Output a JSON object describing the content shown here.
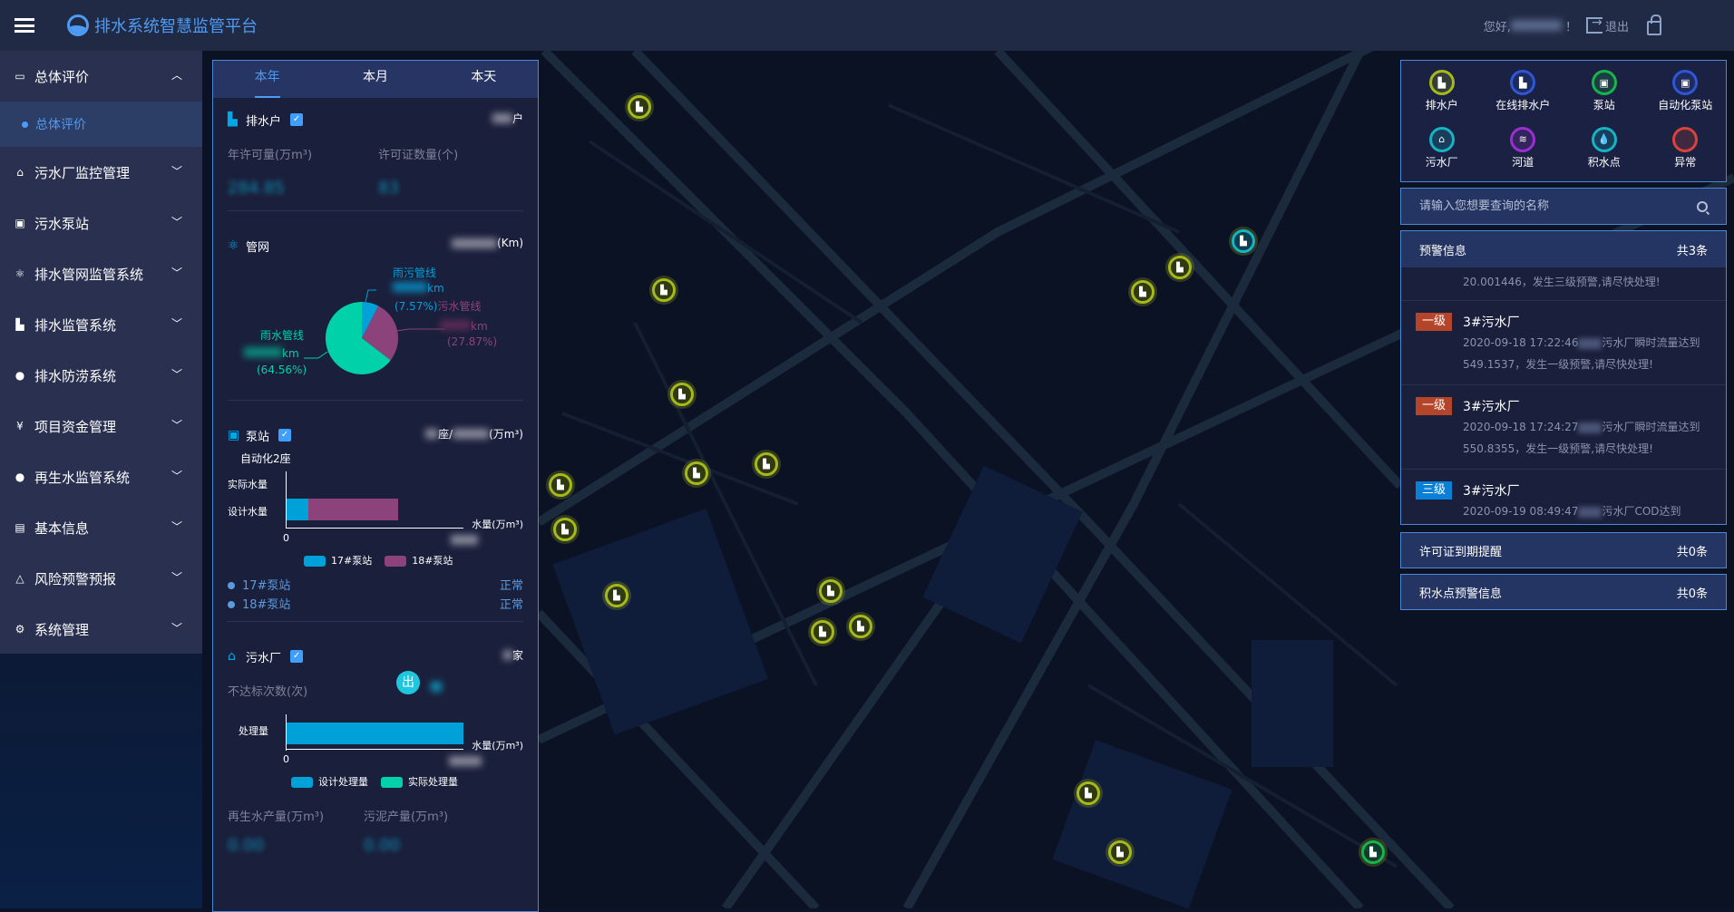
{
  "header": {
    "title": "排水系统智慧监管平台",
    "greeting": "您好,",
    "greeting_end": "！",
    "logout": "退出"
  },
  "sidebar": {
    "items": [
      {
        "label": "总体评价",
        "icon": "monitor-icon",
        "expanded": true,
        "sub": [
          {
            "label": "总体评价",
            "active": true
          }
        ]
      },
      {
        "label": "污水厂监控管理",
        "icon": "home-icon"
      },
      {
        "label": "污水泵站",
        "icon": "pump-icon"
      },
      {
        "label": "排水管网监管系统",
        "icon": "network-icon"
      },
      {
        "label": "排水监管系统",
        "icon": "building-icon"
      },
      {
        "label": "排水防涝系统",
        "icon": "drop-icon"
      },
      {
        "label": "项目资金管理",
        "icon": "money-icon"
      },
      {
        "label": "再生水监管系统",
        "icon": "water-icon"
      },
      {
        "label": "基本信息",
        "icon": "info-icon"
      },
      {
        "label": "风险预警预报",
        "icon": "bell-icon"
      },
      {
        "label": "系统管理",
        "icon": "gear-icon"
      }
    ]
  },
  "left_panel": {
    "tabs": [
      {
        "label": "本年",
        "active": true
      },
      {
        "label": "本月"
      },
      {
        "label": "本天"
      }
    ],
    "drain_households": {
      "title": "排水户",
      "unit": "户",
      "annual_permit_label": "年许可量(万m³)",
      "permit_count_label": "许可证数量(个)",
      "annual_permit_value": "284.85",
      "permit_count_value": "83"
    },
    "pipe_network": {
      "title": "管网",
      "unit": "(Km)",
      "km": "km",
      "pie": [
        {
          "name": "雨污管线",
          "percent": 7.57,
          "label": "(7.57%)",
          "color": "#00a0d8"
        },
        {
          "name": "污水管线",
          "percent": 27.87,
          "label": "(27.87%)",
          "color": "#8c437c"
        },
        {
          "name": "雨水管线",
          "percent": 64.56,
          "label": "(64.56%)",
          "color": "#00d1a8"
        }
      ]
    },
    "pump_station": {
      "title": "泵站",
      "right_mid": "座/",
      "unit": "(万m³)",
      "automation": "自动化2座",
      "y_labels": [
        "实际水量",
        "设计水量"
      ],
      "x_zero": "0",
      "x_label": "水量(万m³)",
      "legend": [
        {
          "name": "17#泵站",
          "color": "#00a0d8"
        },
        {
          "name": "18#泵站",
          "color": "#8c437c"
        }
      ],
      "stations": [
        {
          "name": "17#泵站",
          "status": "正常"
        },
        {
          "name": "18#泵站",
          "status": "正常"
        }
      ]
    },
    "wwtp": {
      "title": "污水厂",
      "unit": "家",
      "substandard_label": "不达标次数(次)",
      "out_badge": "出",
      "y_label": "处理量",
      "x_zero": "0",
      "x_label": "水量(万m³)",
      "legend": [
        {
          "name": "设计处理量",
          "color": "#00a0d8"
        },
        {
          "name": "实际处理量",
          "color": "#00d1a8"
        }
      ],
      "reclaimed_label": "再生水产量(万m³)",
      "sludge_label": "污泥产量(万m³)",
      "reclaimed_value": "0.00",
      "sludge_value": "0.00"
    }
  },
  "right_panel": {
    "legend": [
      {
        "label": "排水户",
        "color": "#a7b81a",
        "icon": "factory-icon",
        "glyph": "▙"
      },
      {
        "label": "在线排水户",
        "color": "#2f56d6",
        "icon": "factory-icon",
        "glyph": "▙"
      },
      {
        "label": "泵站",
        "color": "#19b34a",
        "icon": "pump-icon",
        "glyph": "▣"
      },
      {
        "label": "自动化泵站",
        "color": "#2f56d6",
        "icon": "pump-icon",
        "glyph": "▣"
      },
      {
        "label": "污水厂",
        "color": "#16b3c2",
        "icon": "home-icon",
        "glyph": "⌂"
      },
      {
        "label": "河道",
        "color": "#9b2ed0",
        "icon": "river-icon",
        "glyph": "≋"
      },
      {
        "label": "积水点",
        "color": "#16b3c2",
        "icon": "drop-icon",
        "glyph": "💧"
      },
      {
        "label": "异常",
        "color": "#d8443a",
        "icon": "alert-icon",
        "glyph": ""
      }
    ],
    "search_placeholder": "请输入您想要查询的名称",
    "warnings": {
      "title": "预警信息",
      "count": "共3条",
      "partial_text": "20.001446，发生三级预警,请尽快处理!",
      "items": [
        {
          "level": "一级",
          "level_color": "#b5452a",
          "title": "3#污水厂",
          "time": "2020-09-18 17:22:46",
          "text": "污水厂瞬时流量达到",
          "text2": "549.1537，发生一级预警,请尽快处理!"
        },
        {
          "level": "一级",
          "level_color": "#b5452a",
          "title": "3#污水厂",
          "time": "2020-09-18 17:24:27",
          "text": "污水厂瞬时流量达到",
          "text2": "550.8355，发生一级预警,请尽快处理!"
        },
        {
          "level": "三级",
          "level_color": "#0a7fd6",
          "title": "3#污水厂",
          "time": "2020-09-19 08:49:47",
          "text": "污水厂COD达到",
          "text2": ""
        }
      ]
    },
    "permit_expiry": {
      "title": "许可证到期提醒",
      "count": "共0条"
    },
    "ponding_warning": {
      "title": "积水点预警信息",
      "count": "共0条"
    }
  }
}
